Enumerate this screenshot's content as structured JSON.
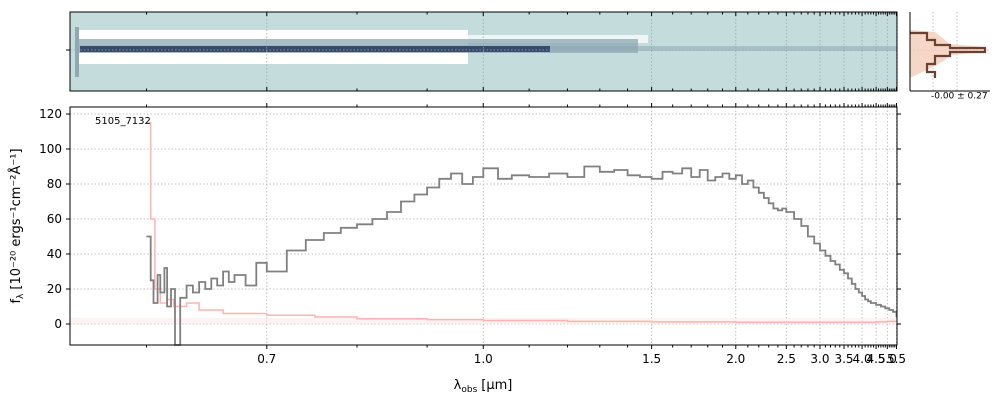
{
  "chart_data": {
    "type": "line",
    "object_id": "5105_7132",
    "xlabel_main": "λ",
    "xlabel_sub": "obs",
    "xlabel_unit": "[μm]",
    "ylabel_main": "f",
    "ylabel_sub": "λ",
    "ylabel_unit": "[10⁻²⁰ ergs⁻¹cm⁻²Å⁻¹]",
    "x_scale": "reciprocal",
    "xlim": [
      0.55,
      5.53
    ],
    "ylim": [
      -12,
      124
    ],
    "xticks": [
      0.7,
      1.0,
      1.5,
      2.0,
      2.5,
      3.0,
      3.5,
      4.0,
      4.5,
      5.0,
      5.5
    ],
    "xtick_labels": [
      "0.7",
      "1.0",
      "1.5",
      "2.0",
      "2.5",
      "3.0",
      "3.5",
      "4.0",
      "4.5",
      "5.0",
      "5.5"
    ],
    "yticks": [
      0,
      20,
      40,
      60,
      80,
      100,
      120
    ],
    "ytick_labels": [
      "0",
      "20",
      "40",
      "60",
      "80",
      "100",
      "120"
    ],
    "grid": true,
    "series": [
      {
        "role": "flux",
        "color": "#808080",
        "x": [
          0.6,
          0.603,
          0.605,
          0.608,
          0.61,
          0.613,
          0.615,
          0.618,
          0.621,
          0.625,
          0.63,
          0.635,
          0.64,
          0.645,
          0.65,
          0.655,
          0.66,
          0.665,
          0.67,
          0.68,
          0.69,
          0.7,
          0.72,
          0.74,
          0.76,
          0.78,
          0.8,
          0.82,
          0.84,
          0.86,
          0.88,
          0.9,
          0.92,
          0.94,
          0.96,
          0.98,
          1.0,
          1.03,
          1.06,
          1.1,
          1.15,
          1.2,
          1.25,
          1.3,
          1.35,
          1.4,
          1.45,
          1.5,
          1.55,
          1.6,
          1.65,
          1.7,
          1.75,
          1.8,
          1.85,
          1.9,
          1.95,
          2.0,
          2.05,
          2.1,
          2.15,
          2.2,
          2.25,
          2.3,
          2.35,
          2.4,
          2.45,
          2.5,
          2.6,
          2.7,
          2.8,
          2.9,
          3.0,
          3.1,
          3.2,
          3.3,
          3.4,
          3.5,
          3.6,
          3.7,
          3.8,
          3.9,
          4.0,
          4.1,
          4.2,
          4.3,
          4.4,
          4.5,
          4.6,
          4.7,
          4.8,
          4.9,
          5.0,
          5.1,
          5.2,
          5.3,
          5.4,
          5.5
        ],
        "y": [
          50,
          25,
          12,
          28,
          18,
          32,
          10,
          20,
          -12,
          15,
          22,
          18,
          24,
          20,
          26,
          22,
          30,
          24,
          28,
          22,
          35,
          30,
          42,
          48,
          52,
          55,
          57,
          60,
          64,
          70,
          74,
          78,
          83,
          86,
          80,
          84,
          89,
          83,
          85,
          84,
          86,
          84,
          90,
          87,
          88,
          85,
          84,
          83,
          87,
          86,
          89,
          84,
          88,
          82,
          84,
          86,
          83,
          85,
          80,
          82,
          78,
          75,
          72,
          69,
          66,
          65,
          66,
          64,
          60,
          56,
          50,
          46,
          42,
          39,
          36,
          34,
          31,
          29,
          26,
          23,
          20,
          18,
          16,
          14,
          13,
          12,
          12,
          11,
          11,
          10,
          10,
          9,
          9,
          8,
          8,
          7,
          7,
          4
        ]
      },
      {
        "role": "uncertainty",
        "color": "#ffb3b3",
        "x": [
          0.6,
          0.603,
          0.606,
          0.61,
          0.615,
          0.62,
          0.63,
          0.64,
          0.66,
          0.7,
          0.75,
          0.8,
          0.9,
          1.0,
          1.2,
          1.5,
          2.0,
          2.5,
          3.0,
          3.5,
          4.0,
          4.5,
          5.0,
          5.5
        ],
        "y": [
          115,
          60,
          20,
          12,
          14,
          10,
          12,
          8,
          6,
          5,
          4,
          3,
          2.5,
          2,
          1.5,
          1.2,
          1,
          1,
          1,
          1,
          1,
          1.2,
          1.5,
          2
        ]
      }
    ],
    "twod_panel": {
      "colormap": [
        "#c5dcdc",
        "#ffffff",
        "#8ea8b4",
        "#253760"
      ],
      "trace_color": "#253760"
    },
    "profile_panel": {
      "label": "-0.00 ± 0.27",
      "line_color": "#6b4232",
      "fill_color": "#f4cdb9"
    }
  }
}
